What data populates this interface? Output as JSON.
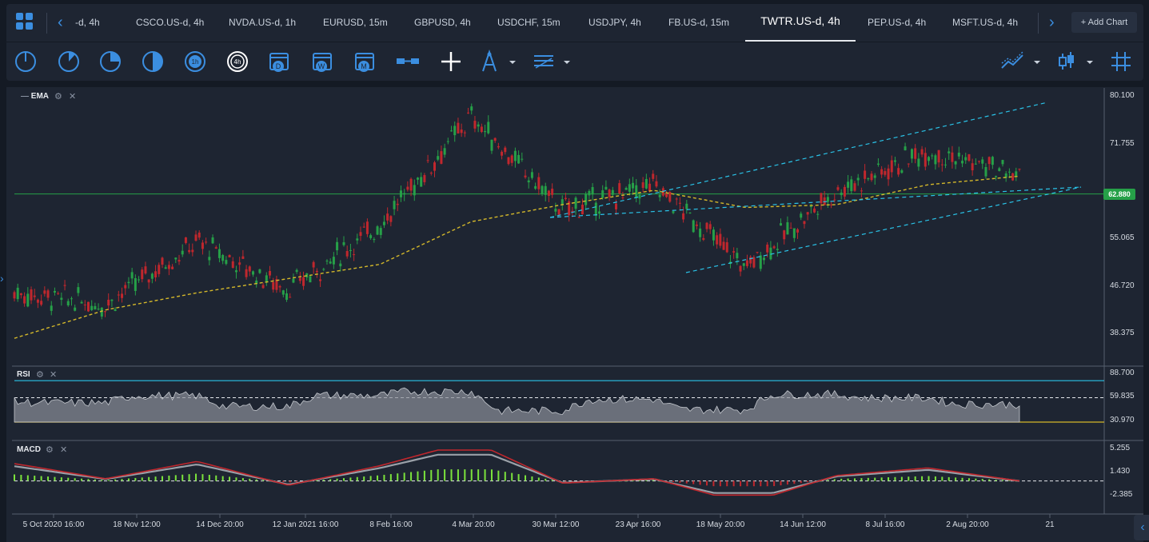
{
  "tabs": {
    "items": [
      {
        "label": "-d, 4h",
        "active": false
      },
      {
        "label": "CSCO.US-d, 4h",
        "active": false
      },
      {
        "label": "NVDA.US-d, 1h",
        "active": false
      },
      {
        "label": "EURUSD, 15m",
        "active": false
      },
      {
        "label": "GBPUSD, 4h",
        "active": false
      },
      {
        "label": "USDCHF, 15m",
        "active": false
      },
      {
        "label": "USDJPY, 4h",
        "active": false
      },
      {
        "label": "FB.US-d, 15m",
        "active": false
      },
      {
        "label": "TWTR.US-d, 4h",
        "active": true
      },
      {
        "label": "PEP.US-d, 4h",
        "active": false
      },
      {
        "label": "MSFT.US-d, 4h",
        "active": false
      }
    ],
    "add_chart": "Add Chart",
    "add_icon": "+"
  },
  "toolbar": {
    "timeframes": [
      "1m",
      "5m",
      "15m",
      "30m",
      "1h",
      "4h",
      "D",
      "W",
      "M"
    ],
    "selected": "4h"
  },
  "panes": {
    "main": {
      "indicator": "EMA",
      "price_labels": [
        "80.100",
        "71.755",
        "55.065",
        "46.720",
        "38.375"
      ],
      "current_price": "62.880"
    },
    "rsi": {
      "indicator": "RSI",
      "labels": [
        "88.700",
        "59.835",
        "30.970"
      ]
    },
    "macd": {
      "indicator": "MACD",
      "labels": [
        "5.255",
        "1.430",
        "-2.385"
      ]
    }
  },
  "x_axis": [
    "5 Oct 2020 16:00",
    "18 Nov 12:00",
    "14 Dec 20:00",
    "12 Jan 2021 16:00",
    "8 Feb 16:00",
    "4 Mar 20:00",
    "30 Mar 12:00",
    "23 Apr 16:00",
    "18 May 20:00",
    "14 Jun 12:00",
    "8 Jul 16:00",
    "2 Aug 20:00",
    "21"
  ],
  "colors": {
    "accent": "#3b8ee0",
    "up": "#26a048",
    "down": "#c0272d",
    "ema": "#d4b82a",
    "channel": "#2ac3e8",
    "rsi_upper": "#2ac3e8",
    "rsi_lower": "#d4b82a"
  },
  "chart_data": {
    "type": "line",
    "title": "TWTR.US-d, 4h",
    "xlabel": "",
    "ylabel": "",
    "x": [
      "5 Oct 2020",
      "18 Nov",
      "14 Dec",
      "12 Jan 2021",
      "8 Feb",
      "4 Mar",
      "30 Mar",
      "23 Apr",
      "18 May",
      "14 Jun",
      "8 Jul",
      "2 Aug"
    ],
    "series": [
      {
        "name": "",
        "values": [
          45.5,
          43.5,
          54.5,
          46.0,
          57.5,
          76.5,
          60.0,
          64.5,
          50.0,
          63.5,
          70.5,
          66.0
        ]
      },
      {
        "name": "EMA",
        "values": [
          37.5,
          42.5,
          45.5,
          48.0,
          50.5,
          58.0,
          61.0,
          63.5,
          60.5,
          61.0,
          64.5,
          66.0
        ]
      }
    ],
    "ylim": [
      38.375,
      80.1
    ],
    "current": 62.88
  }
}
